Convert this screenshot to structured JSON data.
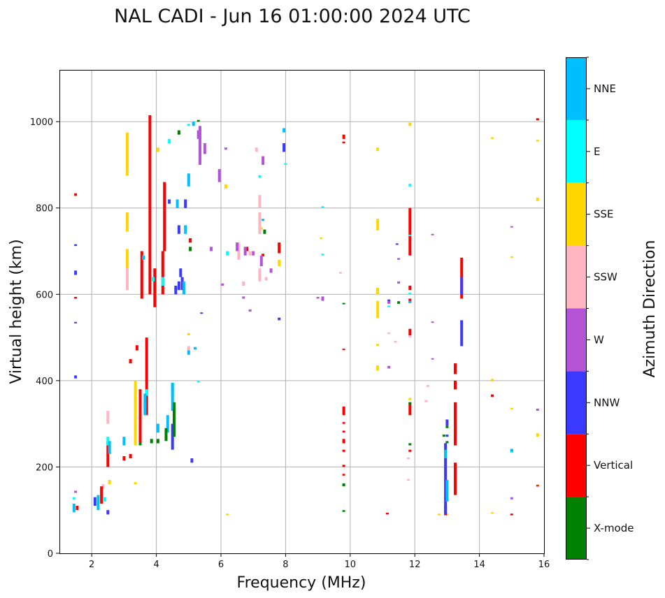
{
  "chart_data": {
    "type": "scatter",
    "title": "NAL CADI - Jun 16 01:00:00 2024 UTC",
    "xlabel": "Frequency (MHz)",
    "ylabel": "Virtual height (km)",
    "xlim": [
      1,
      16
    ],
    "ylim": [
      0,
      1120
    ],
    "xticks": [
      2,
      4,
      6,
      8,
      10,
      12,
      14,
      16
    ],
    "yticks": [
      0,
      200,
      400,
      600,
      800,
      1000
    ],
    "grid": true,
    "colorbar": {
      "title": "Azimuth Direction",
      "categories": [
        {
          "label": "X-mode",
          "color": "#008000"
        },
        {
          "label": "Vertical",
          "color": "#ff0000"
        },
        {
          "label": "NNW",
          "color": "#3a3aff"
        },
        {
          "label": "W",
          "color": "#b455d8"
        },
        {
          "label": "SSW",
          "color": "#ffb6c1"
        },
        {
          "label": "SSE",
          "color": "#ffd700"
        },
        {
          "label": "E",
          "color": "#00ffff"
        },
        {
          "label": "NNE",
          "color": "#00bfff"
        }
      ]
    },
    "series": [
      {
        "name": "SSE",
        "points": [
          [
            3.1,
            875,
            975
          ],
          [
            3.1,
            745,
            790
          ],
          [
            3.1,
            660,
            705
          ],
          [
            3.35,
            250,
            400
          ],
          [
            4.05,
            930,
            940
          ],
          [
            6.15,
            845,
            855
          ],
          [
            7.25,
            750,
            755
          ],
          [
            7.8,
            665,
            680
          ],
          [
            9.1,
            728,
            732
          ],
          [
            10.85,
            932,
            940
          ],
          [
            10.85,
            748,
            775
          ],
          [
            10.85,
            600,
            615
          ],
          [
            10.85,
            545,
            585
          ],
          [
            10.85,
            423,
            435
          ],
          [
            10.85,
            480,
            485
          ],
          [
            11.85,
            990,
            998
          ],
          [
            11.85,
            355,
            360
          ],
          [
            12.75,
            88,
            92
          ],
          [
            13,
            88,
            92
          ],
          [
            14.4,
            960,
            964
          ],
          [
            14.4,
            398,
            404
          ],
          [
            14.4,
            92,
            95
          ],
          [
            15,
            685,
            688
          ],
          [
            15,
            333,
            337
          ],
          [
            15.8,
            816,
            824
          ],
          [
            15.8,
            954,
            958
          ],
          [
            15.8,
            270,
            278
          ],
          [
            15.8,
            158,
            160
          ],
          [
            2.55,
            160,
            170
          ],
          [
            3.35,
            160,
            165
          ],
          [
            6.2,
            88,
            92
          ],
          [
            5,
            505,
            510
          ]
        ]
      },
      {
        "name": "SSW",
        "points": [
          [
            3.1,
            610,
            660
          ],
          [
            7.2,
            800,
            830
          ],
          [
            7.2,
            740,
            790
          ],
          [
            7.2,
            630,
            660
          ],
          [
            6.7,
            620,
            630
          ],
          [
            6.9,
            690,
            700
          ],
          [
            7.4,
            632,
            640
          ],
          [
            5.0,
            470,
            480
          ],
          [
            11.2,
            508,
            512
          ],
          [
            11.4,
            488,
            492
          ],
          [
            11.85,
            500,
            505
          ],
          [
            12.4,
            385,
            390
          ],
          [
            12.35,
            350,
            355
          ],
          [
            11.8,
            218,
            222
          ],
          [
            11.8,
            168,
            172
          ],
          [
            2.35,
            150,
            160
          ],
          [
            2.5,
            300,
            330
          ],
          [
            6.55,
            680,
            720
          ],
          [
            7.1,
            930,
            940
          ],
          [
            9.7,
            648,
            652
          ]
        ]
      },
      {
        "name": "Vertical",
        "points": [
          [
            1.5,
            828,
            834
          ],
          [
            1.5,
            590,
            594
          ],
          [
            3.8,
            600,
            1015
          ],
          [
            3.55,
            590,
            700
          ],
          [
            3.4,
            470,
            482
          ],
          [
            3.2,
            440,
            450
          ],
          [
            3.5,
            250,
            380
          ],
          [
            3.7,
            320,
            500
          ],
          [
            3.95,
            570,
            660
          ],
          [
            4.2,
            600,
            700
          ],
          [
            4.25,
            700,
            860
          ],
          [
            3.2,
            220,
            230
          ],
          [
            3.0,
            215,
            225
          ],
          [
            2.5,
            200,
            260
          ],
          [
            2.3,
            115,
            155
          ],
          [
            1.55,
            100,
            110
          ],
          [
            9.8,
            960,
            970
          ],
          [
            9.8,
            950,
            954
          ],
          [
            9.8,
            320,
            340
          ],
          [
            9.8,
            300,
            304
          ],
          [
            9.8,
            280,
            284
          ],
          [
            9.8,
            255,
            265
          ],
          [
            9.8,
            235,
            240
          ],
          [
            9.8,
            200,
            205
          ],
          [
            9.8,
            180,
            184
          ],
          [
            9.8,
            472,
            474
          ],
          [
            11.15,
            90,
            94
          ],
          [
            11.85,
            690,
            800
          ],
          [
            11.85,
            610,
            620
          ],
          [
            11.85,
            505,
            520
          ],
          [
            11.85,
            580,
            590
          ],
          [
            11.85,
            320,
            350
          ],
          [
            11.85,
            235,
            240
          ],
          [
            13.25,
            135,
            210
          ],
          [
            13.25,
            250,
            350
          ],
          [
            13.25,
            380,
            400
          ],
          [
            13.25,
            415,
            440
          ],
          [
            13.45,
            590,
            685
          ],
          [
            12.95,
            88,
            110
          ],
          [
            14.4,
            362,
            368
          ],
          [
            15,
            88,
            92
          ],
          [
            15.8,
            155,
            158
          ],
          [
            15.8,
            1003,
            1008
          ],
          [
            7.8,
            695,
            720
          ],
          [
            6.8,
            700,
            710
          ],
          [
            7.3,
            688,
            694
          ],
          [
            5.05,
            720,
            730
          ]
        ]
      },
      {
        "name": "NNW",
        "points": [
          [
            1.5,
            645,
            655
          ],
          [
            1.5,
            405,
            412
          ],
          [
            1.5,
            712,
            716
          ],
          [
            1.5,
            533,
            536
          ],
          [
            4.75,
            640,
            660
          ],
          [
            4.8,
            610,
            640
          ],
          [
            4.6,
            600,
            620
          ],
          [
            4.4,
            810,
            820
          ],
          [
            4.7,
            610,
            630
          ],
          [
            4.5,
            240,
            300
          ],
          [
            2.5,
            90,
            100
          ],
          [
            2.1,
            110,
            130
          ],
          [
            13.45,
            480,
            540
          ],
          [
            13.45,
            600,
            640
          ],
          [
            12.95,
            90,
            255
          ],
          [
            7.95,
            930,
            950
          ],
          [
            7.8,
            540,
            546
          ],
          [
            5.1,
            210,
            220
          ],
          [
            5.4,
            555,
            558
          ],
          [
            11.45,
            715,
            718
          ],
          [
            11.2,
            580,
            588
          ],
          [
            15,
            235,
            240
          ],
          [
            4.9,
            800,
            820
          ],
          [
            4.7,
            740,
            760
          ],
          [
            13,
            295,
            310
          ],
          [
            13,
            270,
            275
          ]
        ]
      },
      {
        "name": "W",
        "points": [
          [
            5.35,
            900,
            990
          ],
          [
            5.5,
            925,
            950
          ],
          [
            5.95,
            860,
            890
          ],
          [
            6.15,
            935,
            940
          ],
          [
            6.5,
            700,
            720
          ],
          [
            6.75,
            690,
            710
          ],
          [
            7.0,
            690,
            700
          ],
          [
            7.25,
            665,
            690
          ],
          [
            7.55,
            650,
            660
          ],
          [
            6.9,
            560,
            565
          ],
          [
            6.7,
            590,
            595
          ],
          [
            9.0,
            590,
            594
          ],
          [
            9.15,
            585,
            595
          ],
          [
            11.2,
            578,
            584
          ],
          [
            11.2,
            428,
            434
          ],
          [
            11.5,
            625,
            630
          ],
          [
            11.5,
            680,
            684
          ],
          [
            12.55,
            738,
            740
          ],
          [
            12.55,
            535,
            537
          ],
          [
            12.55,
            450,
            452
          ],
          [
            15,
            755,
            758
          ],
          [
            15,
            125,
            130
          ],
          [
            15.8,
            330,
            335
          ],
          [
            5.7,
            700,
            710
          ],
          [
            6.05,
            620,
            625
          ],
          [
            5.3,
            960,
            980
          ],
          [
            7.3,
            900,
            920
          ],
          [
            1.5,
            140,
            145
          ]
        ]
      },
      {
        "name": "E",
        "points": [
          [
            4.5,
            365,
            395
          ],
          [
            3.7,
            365,
            380
          ],
          [
            3.65,
            340,
            350
          ],
          [
            3.9,
            630,
            640
          ],
          [
            4.4,
            950,
            960
          ],
          [
            5.0,
            990,
            995
          ],
          [
            9.15,
            690,
            694
          ],
          [
            9.15,
            800,
            804
          ],
          [
            11.85,
            850,
            856
          ],
          [
            11.85,
            735,
            738
          ],
          [
            11.85,
            600,
            604
          ],
          [
            11.2,
            570,
            574
          ],
          [
            15,
            233,
            237
          ],
          [
            5.3,
            396,
            400
          ],
          [
            2.5,
            250,
            270
          ],
          [
            2.4,
            120,
            130
          ],
          [
            7.2,
            870,
            876
          ],
          [
            4.2,
            620,
            640
          ],
          [
            6.2,
            690,
            700
          ],
          [
            8.0,
            900,
            904
          ],
          [
            1.45,
            125,
            130
          ]
        ]
      },
      {
        "name": "NNE",
        "points": [
          [
            4.5,
            330,
            395
          ],
          [
            4.35,
            280,
            320
          ],
          [
            3.65,
            320,
            370
          ],
          [
            3.0,
            250,
            270
          ],
          [
            2.55,
            230,
            260
          ],
          [
            2.2,
            100,
            135
          ],
          [
            1.45,
            95,
            115
          ],
          [
            4.05,
            280,
            300
          ],
          [
            5.0,
            460,
            470
          ],
          [
            5.2,
            472,
            478
          ],
          [
            5.0,
            850,
            880
          ],
          [
            4.65,
            800,
            820
          ],
          [
            4.85,
            600,
            630
          ],
          [
            13.0,
            120,
            170
          ],
          [
            12.95,
            220,
            240
          ],
          [
            15,
            238,
            242
          ],
          [
            5.15,
            990,
            1000
          ],
          [
            7.95,
            975,
            985
          ],
          [
            7.3,
            770,
            775
          ],
          [
            11.85,
            580,
            585
          ],
          [
            4.9,
            740,
            760
          ],
          [
            3.6,
            680,
            690
          ]
        ]
      },
      {
        "name": "X-mode",
        "points": [
          [
            4.55,
            270,
            350
          ],
          [
            4.3,
            260,
            290
          ],
          [
            4.05,
            255,
            265
          ],
          [
            3.85,
            255,
            265
          ],
          [
            3.5,
            250,
            256
          ],
          [
            4.7,
            970,
            980
          ],
          [
            5.3,
            1000,
            1004
          ],
          [
            9.8,
            155,
            162
          ],
          [
            9.8,
            96,
            100
          ],
          [
            9.8,
            578,
            580
          ],
          [
            13.0,
            290,
            295
          ],
          [
            13.0,
            255,
            260
          ],
          [
            11.85,
            345,
            350
          ],
          [
            11.85,
            250,
            255
          ],
          [
            7.35,
            740,
            750
          ],
          [
            5.05,
            700,
            710
          ],
          [
            11.5,
            578,
            584
          ],
          [
            12.9,
            270,
            275
          ]
        ]
      }
    ]
  }
}
